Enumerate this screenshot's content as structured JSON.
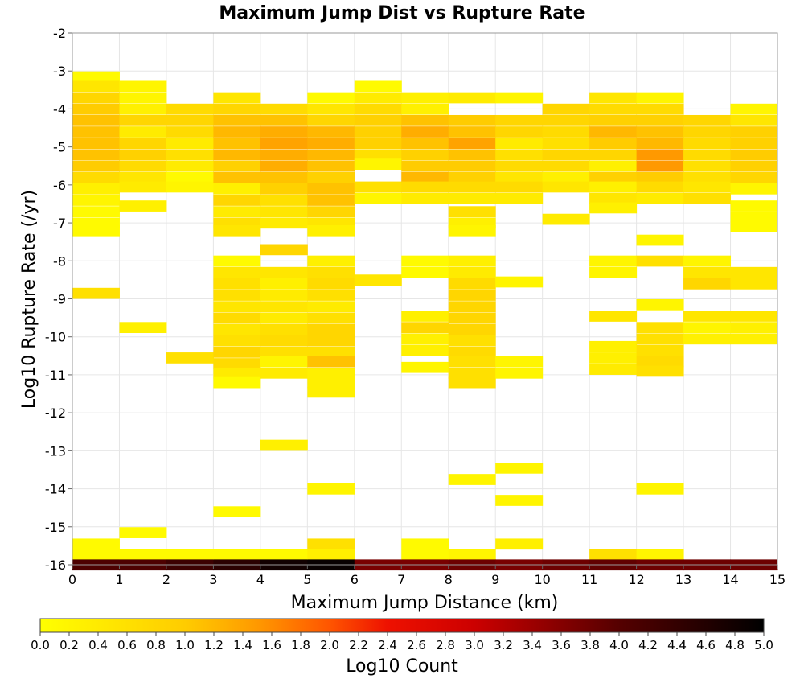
{
  "chart_data": {
    "type": "heatmap",
    "title": "Maximum Jump Dist vs Rupture Rate",
    "xlabel": "Maximum Jump Distance (km)",
    "ylabel": "Log10 Rupture Rate (/yr)",
    "xlim": [
      0,
      15
    ],
    "ylim": [
      -16,
      -2
    ],
    "x_ticks": [
      "0",
      "1",
      "2",
      "3",
      "4",
      "5",
      "6",
      "7",
      "8",
      "9",
      "10",
      "11",
      "12",
      "13",
      "14",
      "15"
    ],
    "y_ticks": [
      "-2",
      "-3",
      "-4",
      "-5",
      "-6",
      "-7",
      "-8",
      "-9",
      "-10",
      "-11",
      "-12",
      "-13",
      "-14",
      "-15",
      "-16"
    ],
    "cell_width": 1.0,
    "cell_height": 0.28,
    "grid": true,
    "colorbar": {
      "label": "Log10 Count",
      "range": [
        0,
        5
      ],
      "ticks": [
        "0.0",
        "0.2",
        "0.4",
        "0.6",
        "0.8",
        "1.0",
        "1.2",
        "1.4",
        "1.6",
        "1.8",
        "2.0",
        "2.2",
        "2.4",
        "2.6",
        "2.8",
        "3.0",
        "3.2",
        "3.4",
        "3.6",
        "3.8",
        "4.0",
        "4.2",
        "4.4",
        "4.6",
        "4.8",
        "5.0"
      ],
      "placement": "bottom"
    },
    "columns": [
      {
        "x": 0,
        "cells": [
          [
            -3.15,
            0.1
          ],
          [
            -3.4,
            0.5
          ],
          [
            -3.7,
            0.8
          ],
          [
            -4.0,
            1.0
          ],
          [
            -4.3,
            1.1
          ],
          [
            -4.6,
            1.1
          ],
          [
            -4.9,
            1.1
          ],
          [
            -5.2,
            1.1
          ],
          [
            -5.5,
            1.0
          ],
          [
            -5.8,
            0.7
          ],
          [
            -6.1,
            0.3
          ],
          [
            -6.4,
            0.2
          ],
          [
            -6.7,
            0.1
          ],
          [
            -7.0,
            0.1
          ],
          [
            -7.2,
            0.1
          ],
          [
            -8.85,
            0.6
          ],
          [
            -15.45,
            0.1
          ],
          [
            -15.72,
            0.1
          ],
          [
            -16.0,
            4.1
          ]
        ]
      },
      {
        "x": 1,
        "cells": [
          [
            -3.4,
            0.2
          ],
          [
            -3.7,
            0.2
          ],
          [
            -4.0,
            0.3
          ],
          [
            -4.3,
            0.8
          ],
          [
            -4.6,
            0.4
          ],
          [
            -4.9,
            0.8
          ],
          [
            -5.2,
            0.9
          ],
          [
            -5.5,
            0.7
          ],
          [
            -5.8,
            0.5
          ],
          [
            -6.05,
            0.4
          ],
          [
            -6.55,
            0.3
          ],
          [
            -9.75,
            0.3
          ],
          [
            -15.15,
            0.1
          ],
          [
            -15.72,
            0.1
          ],
          [
            -16.0,
            4.1
          ]
        ]
      },
      {
        "x": 2,
        "cells": [
          [
            -4.0,
            0.7
          ],
          [
            -4.3,
            0.8
          ],
          [
            -4.6,
            0.7
          ],
          [
            -4.9,
            0.4
          ],
          [
            -5.2,
            0.6
          ],
          [
            -5.5,
            0.4
          ],
          [
            -5.8,
            0.1
          ],
          [
            -6.05,
            0.2
          ],
          [
            -10.55,
            0.6
          ],
          [
            -15.72,
            0.1
          ],
          [
            -16.0,
            4.3
          ]
        ]
      },
      {
        "x": 3,
        "cells": [
          [
            -3.7,
            0.5
          ],
          [
            -4.0,
            0.8
          ],
          [
            -4.3,
            1.1
          ],
          [
            -4.6,
            1.2
          ],
          [
            -4.9,
            1.1
          ],
          [
            -5.2,
            1.2
          ],
          [
            -5.5,
            0.9
          ],
          [
            -5.8,
            1.1
          ],
          [
            -6.1,
            0.3
          ],
          [
            -6.4,
            0.8
          ],
          [
            -6.7,
            0.4
          ],
          [
            -7.0,
            0.6
          ],
          [
            -7.2,
            0.5
          ],
          [
            -8.0,
            0.1
          ],
          [
            -8.3,
            0.5
          ],
          [
            -8.6,
            0.6
          ],
          [
            -8.9,
            0.6
          ],
          [
            -9.2,
            0.5
          ],
          [
            -9.5,
            0.7
          ],
          [
            -9.8,
            0.5
          ],
          [
            -10.1,
            0.6
          ],
          [
            -10.4,
            0.8
          ],
          [
            -10.7,
            0.7
          ],
          [
            -10.95,
            0.4
          ],
          [
            -11.2,
            0.1
          ],
          [
            -14.6,
            0.1
          ],
          [
            -15.72,
            0.1
          ],
          [
            -16.0,
            4.5
          ]
        ]
      },
      {
        "x": 4,
        "cells": [
          [
            -4.0,
            0.7
          ],
          [
            -4.3,
            1.1
          ],
          [
            -4.6,
            1.3
          ],
          [
            -4.9,
            1.4
          ],
          [
            -5.2,
            1.3
          ],
          [
            -5.5,
            1.3
          ],
          [
            -5.8,
            1.1
          ],
          [
            -6.1,
            0.9
          ],
          [
            -6.4,
            0.6
          ],
          [
            -6.7,
            0.5
          ],
          [
            -7.0,
            0.4
          ],
          [
            -7.7,
            0.8
          ],
          [
            -8.3,
            0.5
          ],
          [
            -8.6,
            0.3
          ],
          [
            -8.9,
            0.4
          ],
          [
            -9.2,
            0.5
          ],
          [
            -9.5,
            0.4
          ],
          [
            -9.8,
            0.6
          ],
          [
            -10.1,
            0.7
          ],
          [
            -10.4,
            0.6
          ],
          [
            -10.65,
            0.2
          ],
          [
            -10.95,
            0.4
          ],
          [
            -12.85,
            0.3
          ],
          [
            -15.72,
            0.1
          ],
          [
            -16.0,
            4.8
          ]
        ]
      },
      {
        "x": 5,
        "cells": [
          [
            -3.7,
            0.1
          ],
          [
            -4.0,
            0.5
          ],
          [
            -4.3,
            0.8
          ],
          [
            -4.6,
            1.2
          ],
          [
            -4.9,
            1.3
          ],
          [
            -5.2,
            1.2
          ],
          [
            -5.5,
            1.1
          ],
          [
            -5.8,
            0.9
          ],
          [
            -6.1,
            1.1
          ],
          [
            -6.4,
            1.1
          ],
          [
            -6.7,
            0.8
          ],
          [
            -7.0,
            0.5
          ],
          [
            -7.2,
            0.3
          ],
          [
            -8.0,
            0.3
          ],
          [
            -8.3,
            0.6
          ],
          [
            -8.6,
            0.7
          ],
          [
            -8.9,
            0.6
          ],
          [
            -9.2,
            0.4
          ],
          [
            -9.5,
            0.6
          ],
          [
            -9.8,
            0.8
          ],
          [
            -10.1,
            0.8
          ],
          [
            -10.4,
            0.6
          ],
          [
            -10.65,
            1.1
          ],
          [
            -10.95,
            0.3
          ],
          [
            -11.2,
            0.3
          ],
          [
            -11.45,
            0.3
          ],
          [
            -14.0,
            0.2
          ],
          [
            -15.45,
            0.6
          ],
          [
            -15.72,
            0.3
          ],
          [
            -16.0,
            4.9
          ]
        ]
      },
      {
        "x": 6,
        "cells": [
          [
            -3.4,
            0.1
          ],
          [
            -3.7,
            0.4
          ],
          [
            -4.0,
            0.7
          ],
          [
            -4.3,
            0.9
          ],
          [
            -4.6,
            0.9
          ],
          [
            -4.9,
            0.9
          ],
          [
            -5.2,
            0.6
          ],
          [
            -5.45,
            0.2
          ],
          [
            -6.05,
            0.6
          ],
          [
            -6.35,
            0.2
          ],
          [
            -8.5,
            0.5
          ],
          [
            -16.0,
            3.7
          ]
        ]
      },
      {
        "x": 7,
        "cells": [
          [
            -3.7,
            0.3
          ],
          [
            -4.0,
            0.3
          ],
          [
            -4.3,
            1.1
          ],
          [
            -4.6,
            1.3
          ],
          [
            -4.9,
            1.1
          ],
          [
            -5.2,
            0.9
          ],
          [
            -5.5,
            1.0
          ],
          [
            -5.8,
            1.2
          ],
          [
            -6.05,
            0.7
          ],
          [
            -6.35,
            0.4
          ],
          [
            -8.0,
            0.1
          ],
          [
            -8.3,
            0.1
          ],
          [
            -9.45,
            0.3
          ],
          [
            -9.75,
            0.8
          ],
          [
            -10.05,
            0.3
          ],
          [
            -10.35,
            0.3
          ],
          [
            -10.8,
            0.2
          ],
          [
            -15.45,
            0.1
          ],
          [
            -15.72,
            0.1
          ],
          [
            -16.0,
            3.7
          ]
        ]
      },
      {
        "x": 8,
        "cells": [
          [
            -3.7,
            0.4
          ],
          [
            -4.3,
            1.0
          ],
          [
            -4.6,
            1.1
          ],
          [
            -4.9,
            1.4
          ],
          [
            -5.2,
            1.1
          ],
          [
            -5.5,
            1.0
          ],
          [
            -5.8,
            0.9
          ],
          [
            -6.05,
            0.7
          ],
          [
            -6.35,
            0.4
          ],
          [
            -6.7,
            0.6
          ],
          [
            -7.0,
            0.3
          ],
          [
            -7.2,
            0.2
          ],
          [
            -8.0,
            0.3
          ],
          [
            -8.3,
            0.4
          ],
          [
            -8.6,
            0.7
          ],
          [
            -8.9,
            0.8
          ],
          [
            -9.2,
            0.8
          ],
          [
            -9.5,
            0.8
          ],
          [
            -9.8,
            0.8
          ],
          [
            -10.1,
            0.6
          ],
          [
            -10.4,
            0.7
          ],
          [
            -10.65,
            0.6
          ],
          [
            -10.95,
            0.6
          ],
          [
            -11.2,
            0.6
          ],
          [
            -13.75,
            0.2
          ],
          [
            -15.72,
            0.2
          ],
          [
            -16.0,
            3.8
          ]
        ]
      },
      {
        "x": 9,
        "cells": [
          [
            -3.7,
            0.2
          ],
          [
            -4.3,
            0.8
          ],
          [
            -4.6,
            0.8
          ],
          [
            -4.9,
            0.4
          ],
          [
            -5.2,
            0.6
          ],
          [
            -5.5,
            0.7
          ],
          [
            -5.8,
            0.5
          ],
          [
            -6.05,
            0.7
          ],
          [
            -6.35,
            0.4
          ],
          [
            -8.55,
            0.2
          ],
          [
            -10.65,
            0.2
          ],
          [
            -10.95,
            0.2
          ],
          [
            -13.45,
            0.2
          ],
          [
            -14.3,
            0.2
          ],
          [
            -15.45,
            0.3
          ],
          [
            -16.0,
            3.7
          ]
        ]
      },
      {
        "x": 10,
        "cells": [
          [
            -4.0,
            0.8
          ],
          [
            -4.3,
            0.8
          ],
          [
            -4.6,
            0.7
          ],
          [
            -4.9,
            0.6
          ],
          [
            -5.2,
            0.8
          ],
          [
            -5.5,
            0.7
          ],
          [
            -5.8,
            0.3
          ],
          [
            -6.05,
            0.5
          ],
          [
            -6.9,
            0.4
          ],
          [
            -16.0,
            3.8
          ]
        ]
      },
      {
        "x": 11,
        "cells": [
          [
            -3.7,
            0.5
          ],
          [
            -4.0,
            0.7
          ],
          [
            -4.3,
            0.9
          ],
          [
            -4.6,
            1.2
          ],
          [
            -4.9,
            1.0
          ],
          [
            -5.2,
            0.8
          ],
          [
            -5.5,
            0.3
          ],
          [
            -5.8,
            0.9
          ],
          [
            -6.05,
            0.3
          ],
          [
            -6.35,
            0.5
          ],
          [
            -6.6,
            0.3
          ],
          [
            -8.0,
            0.2
          ],
          [
            -8.3,
            0.2
          ],
          [
            -9.45,
            0.5
          ],
          [
            -10.25,
            0.3
          ],
          [
            -10.55,
            0.3
          ],
          [
            -10.85,
            0.4
          ],
          [
            -15.72,
            0.6
          ],
          [
            -16.0,
            3.9
          ]
        ]
      },
      {
        "x": 12,
        "cells": [
          [
            -3.7,
            0.2
          ],
          [
            -4.0,
            0.7
          ],
          [
            -4.3,
            0.9
          ],
          [
            -4.6,
            1.1
          ],
          [
            -4.9,
            1.2
          ],
          [
            -5.2,
            1.5
          ],
          [
            -5.5,
            1.5
          ],
          [
            -5.8,
            1.0
          ],
          [
            -6.05,
            0.7
          ],
          [
            -6.35,
            0.4
          ],
          [
            -7.45,
            0.2
          ],
          [
            -8.0,
            0.6
          ],
          [
            -9.15,
            0.2
          ],
          [
            -9.75,
            0.6
          ],
          [
            -10.05,
            0.6
          ],
          [
            -10.35,
            0.6
          ],
          [
            -10.65,
            0.7
          ],
          [
            -10.9,
            0.6
          ],
          [
            -14.0,
            0.2
          ],
          [
            -15.72,
            0.2
          ],
          [
            -16.0,
            3.8
          ]
        ]
      },
      {
        "x": 13,
        "cells": [
          [
            -4.3,
            0.8
          ],
          [
            -4.6,
            0.8
          ],
          [
            -4.9,
            0.7
          ],
          [
            -5.2,
            0.7
          ],
          [
            -5.5,
            0.6
          ],
          [
            -5.8,
            0.6
          ],
          [
            -6.05,
            0.5
          ],
          [
            -6.35,
            0.6
          ],
          [
            -8.0,
            0.2
          ],
          [
            -8.3,
            0.5
          ],
          [
            -8.6,
            0.8
          ],
          [
            -9.45,
            0.5
          ],
          [
            -9.75,
            0.2
          ],
          [
            -10.05,
            0.3
          ],
          [
            -16.0,
            3.8
          ]
        ]
      },
      {
        "x": 14,
        "cells": [
          [
            -4.0,
            0.2
          ],
          [
            -4.3,
            0.5
          ],
          [
            -4.6,
            0.9
          ],
          [
            -4.9,
            0.9
          ],
          [
            -5.2,
            1.0
          ],
          [
            -5.5,
            0.9
          ],
          [
            -5.8,
            0.8
          ],
          [
            -6.1,
            0.2
          ],
          [
            -6.55,
            0.1
          ],
          [
            -6.85,
            0.1
          ],
          [
            -7.1,
            0.1
          ],
          [
            -8.3,
            0.5
          ],
          [
            -8.6,
            0.5
          ],
          [
            -9.45,
            0.5
          ],
          [
            -9.75,
            0.3
          ],
          [
            -10.05,
            0.3
          ],
          [
            -16.0,
            3.8
          ]
        ]
      }
    ]
  }
}
